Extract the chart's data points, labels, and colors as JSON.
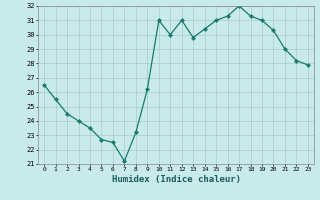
{
  "x": [
    0,
    1,
    2,
    3,
    4,
    5,
    6,
    7,
    8,
    9,
    10,
    11,
    12,
    13,
    14,
    15,
    16,
    17,
    18,
    19,
    20,
    21,
    22,
    23
  ],
  "y": [
    26.5,
    25.5,
    24.5,
    24.0,
    23.5,
    22.7,
    22.5,
    21.2,
    23.2,
    26.2,
    31.0,
    30.0,
    31.0,
    29.8,
    30.4,
    31.0,
    31.3,
    32.0,
    31.3,
    31.0,
    30.3,
    29.0,
    28.2,
    27.9
  ],
  "xlabel": "Humidex (Indice chaleur)",
  "ylim": [
    21,
    32
  ],
  "xlim": [
    -0.5,
    23.5
  ],
  "yticks": [
    21,
    22,
    23,
    24,
    25,
    26,
    27,
    28,
    29,
    30,
    31,
    32
  ],
  "xticks": [
    0,
    1,
    2,
    3,
    4,
    5,
    6,
    7,
    8,
    9,
    10,
    11,
    12,
    13,
    14,
    15,
    16,
    17,
    18,
    19,
    20,
    21,
    22,
    23
  ],
  "line_color": "#1a7a6e",
  "marker_color": "#1a7a6e",
  "bg_color": "#c8eaea",
  "grid_color": "#b0cfcf",
  "xlabel_color": "#1a5c5c",
  "xlabel_fontsize": 6.5
}
